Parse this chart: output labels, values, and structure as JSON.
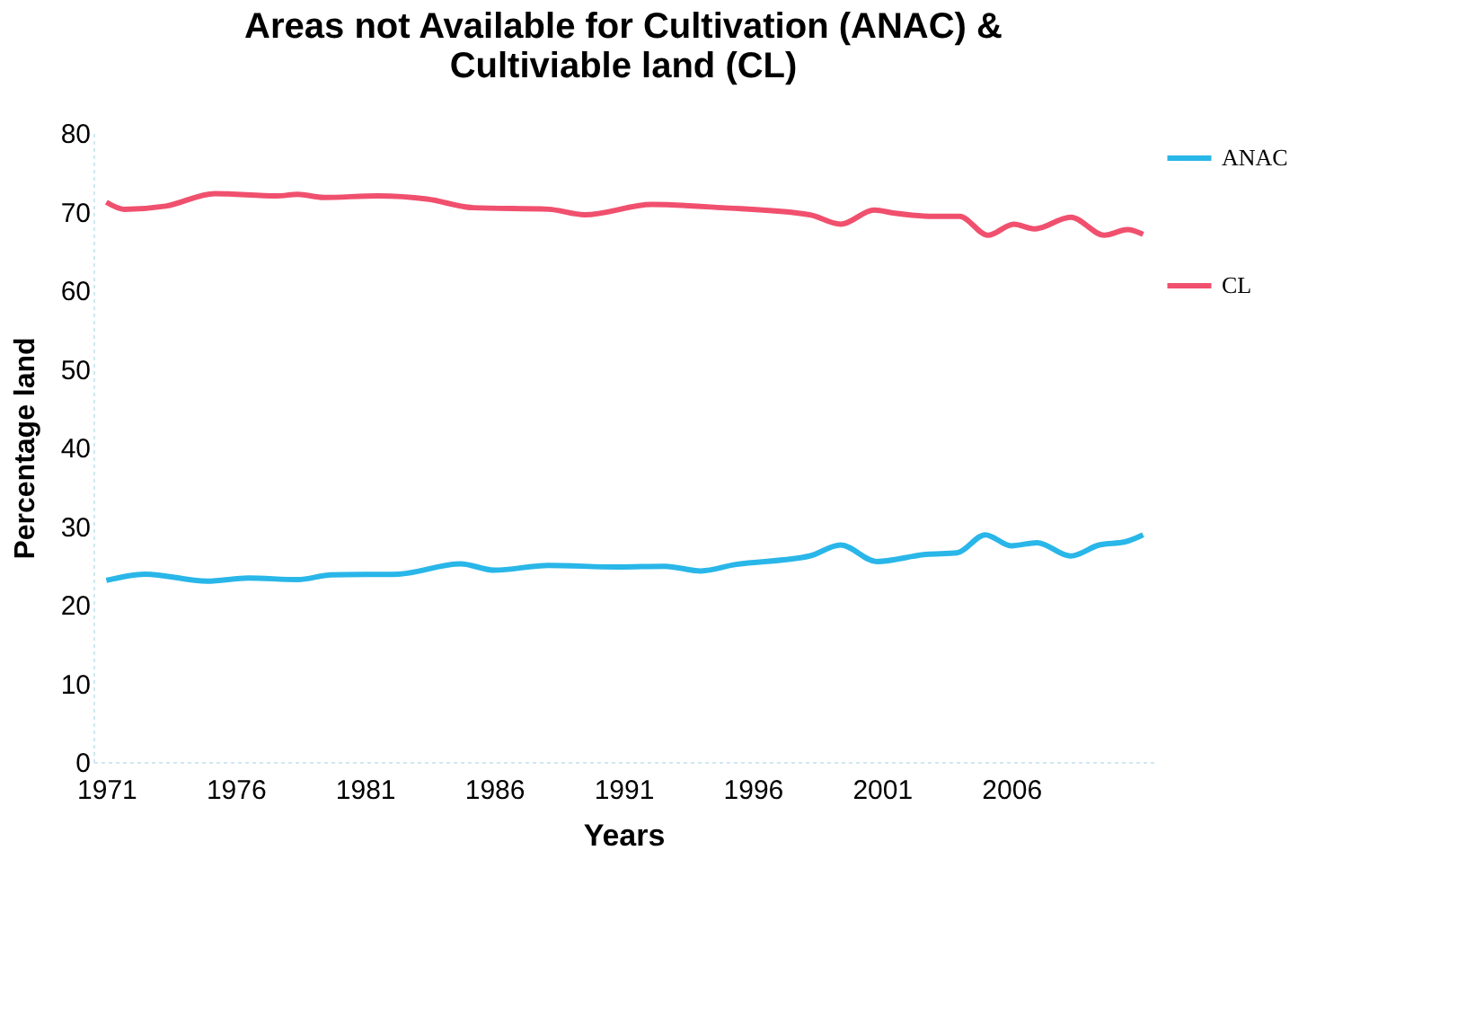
{
  "chart_data": {
    "type": "line",
    "title": "Areas not Available for Cultivation (ANAC) & Cultiviable land (CL)",
    "xlabel": "Years",
    "ylabel": "Percentage land",
    "xlim": [
      1970.5,
      2011.5
    ],
    "xticks": [
      1971,
      1976,
      1981,
      1986,
      1991,
      1996,
      2001,
      2006
    ],
    "ylim": [
      0,
      80
    ],
    "yticks": [
      0,
      10,
      20,
      30,
      40,
      50,
      60,
      70,
      80
    ],
    "grid": false,
    "legend": "right",
    "marker": "none",
    "line_style": "solid",
    "series": [
      {
        "name": "ANAC",
        "color": "#29b6e8",
        "x": [
          1971,
          1972.5,
          1974.9,
          1976.5,
          1978.4,
          1979.7,
          1982.3,
          1984.7,
          1986.0,
          1988.1,
          1990.8,
          1992.6,
          1994.0,
          1995.3,
          1998.2,
          1999.4,
          2000.8,
          2002.7,
          2003.9,
          2005.0,
          2006.0,
          2007.0,
          2008.3,
          2009.4,
          2010.4,
          2011.1
        ],
        "values": [
          23.1,
          23.9,
          23.0,
          23.4,
          23.2,
          23.8,
          23.9,
          25.2,
          24.4,
          25.0,
          24.8,
          24.9,
          24.3,
          25.1,
          26.2,
          27.6,
          25.5,
          26.4,
          26.6,
          28.9,
          27.5,
          27.9,
          26.2,
          27.6,
          28.0,
          28.9
        ]
      },
      {
        "name": "CL",
        "color": "#f0506e",
        "x": [
          1971,
          1971.7,
          1973.3,
          1975.2,
          1977.6,
          1978.4,
          1979.4,
          1981.5,
          1983.4,
          1985.2,
          1988.1,
          1989.5,
          1992.1,
          1994.8,
          1998.2,
          1999.4,
          2000.7,
          2001.5,
          2003.0,
          2004.0,
          2005.1,
          2006.1,
          2006.9,
          2008.3,
          2009.6,
          2010.5,
          2011.1
        ],
        "values": [
          71.2,
          70.3,
          70.7,
          72.3,
          72.0,
          72.2,
          71.8,
          72.0,
          71.6,
          70.5,
          70.3,
          69.6,
          70.9,
          70.5,
          69.6,
          68.4,
          70.2,
          69.8,
          69.4,
          69.4,
          67.0,
          68.4,
          67.8,
          69.3,
          67.0,
          67.7,
          67.1
        ]
      }
    ]
  }
}
